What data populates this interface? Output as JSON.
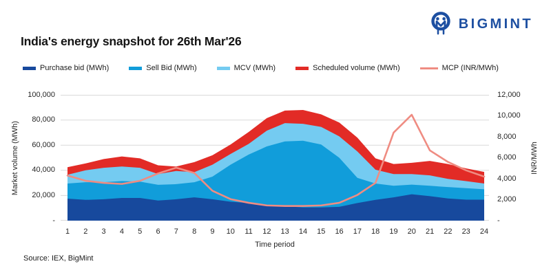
{
  "logo": {
    "text": "BIGMINT"
  },
  "source": "Source: IEX, BigMint",
  "colors": {
    "purchase": "#17499d",
    "sell": "#119dda",
    "mcv": "#74cbf1",
    "scheduled": "#e22b26",
    "mcp": "#ef8c82",
    "gridline": "#d9d9d9",
    "brand_navy": "#1d4fa1",
    "text": "#262626"
  },
  "chart_data": {
    "type": "area",
    "stacked": true,
    "title": "India's energy snapshot for 26th Mar'26",
    "x_title": "Time period",
    "categories": [
      "1",
      "2",
      "3",
      "4",
      "5",
      "6",
      "7",
      "8",
      "9",
      "10",
      "11",
      "12",
      "13",
      "14",
      "15",
      "16",
      "17",
      "18",
      "19",
      "20",
      "21",
      "22",
      "23",
      "24"
    ],
    "left_axis": {
      "title": "Market volume (MWh)",
      "min": 0,
      "max": 100000,
      "tick_step": 20000,
      "tick_labels": [
        "100,000",
        "80,000",
        "60,000",
        "40,000",
        "20,000",
        "-"
      ]
    },
    "right_axis": {
      "title": "INR/MWh",
      "min": 0,
      "max": 12000,
      "tick_step": 2000,
      "tick_labels": [
        "12,000",
        "10,000",
        "8,000",
        "6,000",
        "4,000",
        "2,000",
        "-"
      ]
    },
    "grid": "horizontal",
    "legend_position": "top",
    "series": [
      {
        "key": "purchase",
        "name": "Purchase bid (MWh)",
        "values": [
          17500,
          16500,
          17000,
          18000,
          18000,
          16000,
          17000,
          18500,
          17000,
          15000,
          14000,
          12500,
          11500,
          10500,
          10500,
          11000,
          14000,
          16500,
          18500,
          21000,
          19500,
          17600,
          16700,
          16700
        ]
      },
      {
        "key": "sell",
        "name": "Sell Bid (MWh)",
        "values": [
          12000,
          14000,
          13500,
          13500,
          13000,
          12500,
          12000,
          12000,
          18000,
          29500,
          38500,
          46500,
          51500,
          53000,
          50000,
          39000,
          20000,
          13000,
          9200,
          7600,
          8200,
          9100,
          9100,
          8200
        ]
      },
      {
        "key": "mcv",
        "name": "MCV (MWh)",
        "values": [
          7000,
          9500,
          11500,
          11500,
          11000,
          8500,
          10500,
          8000,
          9500,
          8500,
          8500,
          12500,
          14500,
          13500,
          14000,
          17000,
          21000,
          11000,
          9300,
          8400,
          8300,
          6500,
          5600,
          4600
        ]
      },
      {
        "key": "scheduled",
        "name": "Scheduled volume (MWh)",
        "values": [
          6000,
          5500,
          7000,
          8000,
          7500,
          7000,
          3500,
          8000,
          7500,
          7500,
          9500,
          10000,
          10000,
          11000,
          10000,
          11000,
          11000,
          9000,
          8000,
          9000,
          11500,
          11800,
          10100,
          9200
        ]
      }
    ],
    "line_series": {
      "key": "mcp",
      "name": "MCP (INR/MWh)",
      "axis": "right",
      "values": [
        4300,
        3800,
        3600,
        3500,
        3800,
        4500,
        5050,
        4550,
        2850,
        2050,
        1700,
        1450,
        1400,
        1400,
        1450,
        1700,
        2450,
        3600,
        8400,
        10100,
        6700,
        5600,
        4800,
        4200
      ]
    }
  }
}
